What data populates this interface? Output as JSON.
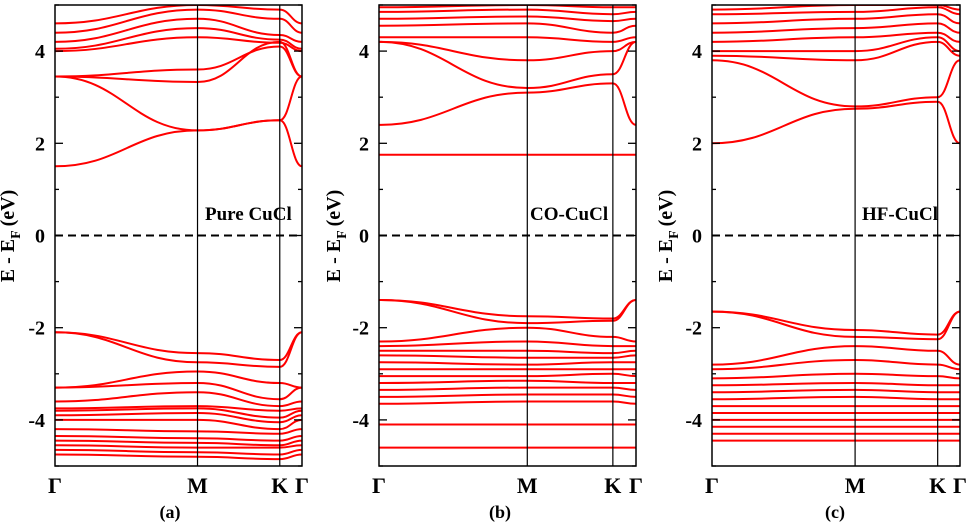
{
  "figure": {
    "panel_labels": [
      "(a)",
      "(b)",
      "(c)"
    ]
  },
  "chart_data": [
    {
      "type": "line",
      "annotation": "Pure CuCl",
      "panel_label": "(a)",
      "ylabel": "E - E",
      "ylabel_sub": "F",
      "ylabel_unit": "(eV)",
      "ylim": [
        -5,
        5
      ],
      "yticks": [
        -4,
        -2,
        0,
        2,
        4
      ],
      "k_points": [
        "Γ",
        "M",
        "K",
        "Γ"
      ],
      "k_positions": [
        0,
        0.577,
        0.91,
        1.0
      ],
      "fermi_level": 0,
      "line_color": "#ff0000",
      "bands": [
        [
          1.5,
          2.28,
          2.5,
          1.5
        ],
        [
          3.45,
          2.28,
          2.5,
          3.45
        ],
        [
          3.45,
          3.33,
          4.2,
          3.45
        ],
        [
          3.45,
          3.6,
          4.1,
          3.45
        ],
        [
          4.0,
          4.3,
          4.18,
          4.0
        ],
        [
          4.05,
          4.5,
          4.25,
          4.05
        ],
        [
          4.2,
          4.7,
          4.35,
          4.2
        ],
        [
          4.4,
          4.9,
          4.7,
          4.4
        ],
        [
          4.6,
          5.0,
          4.9,
          4.6
        ],
        [
          -2.1,
          -2.55,
          -2.7,
          -2.1
        ],
        [
          -2.1,
          -2.75,
          -2.85,
          -2.1
        ],
        [
          -3.3,
          -2.95,
          -3.2,
          -3.3
        ],
        [
          -3.3,
          -3.2,
          -3.55,
          -3.3
        ],
        [
          -3.6,
          -3.4,
          -3.7,
          -3.6
        ],
        [
          -3.75,
          -3.7,
          -3.8,
          -3.75
        ],
        [
          -3.8,
          -3.75,
          -3.95,
          -3.8
        ],
        [
          -3.9,
          -3.85,
          -4.05,
          -3.9
        ],
        [
          -4.0,
          -4.0,
          -4.2,
          -4.0
        ],
        [
          -4.2,
          -4.25,
          -4.3,
          -4.2
        ],
        [
          -4.35,
          -4.4,
          -4.45,
          -4.35
        ],
        [
          -4.45,
          -4.5,
          -4.55,
          -4.45
        ],
        [
          -4.55,
          -4.6,
          -4.6,
          -4.55
        ],
        [
          -4.65,
          -4.7,
          -4.75,
          -4.65
        ],
        [
          -4.75,
          -4.8,
          -4.85,
          -4.75
        ]
      ]
    },
    {
      "type": "line",
      "annotation": "CO-CuCl",
      "panel_label": "(b)",
      "ylabel": "E - E",
      "ylabel_sub": "F",
      "ylabel_unit": "(eV)",
      "ylim": [
        -5,
        5
      ],
      "yticks": [
        -4,
        -2,
        0,
        2,
        4
      ],
      "k_points": [
        "Γ",
        "M",
        "K",
        "Γ"
      ],
      "k_positions": [
        0,
        0.577,
        0.91,
        1.0
      ],
      "fermi_level": 0,
      "line_color": "#ff0000",
      "bands": [
        [
          1.75,
          1.75,
          1.75,
          1.75
        ],
        [
          2.4,
          3.1,
          3.3,
          2.4
        ],
        [
          4.2,
          3.2,
          3.5,
          4.2
        ],
        [
          4.2,
          3.8,
          4.0,
          4.2
        ],
        [
          4.3,
          4.3,
          4.2,
          4.3
        ],
        [
          4.55,
          4.6,
          4.4,
          4.55
        ],
        [
          4.7,
          4.75,
          4.65,
          4.7
        ],
        [
          4.85,
          4.9,
          4.8,
          4.85
        ],
        [
          4.95,
          5.0,
          4.95,
          4.95
        ],
        [
          -1.4,
          -1.75,
          -1.8,
          -1.4
        ],
        [
          -1.4,
          -1.9,
          -1.85,
          -1.4
        ],
        [
          -2.3,
          -2.0,
          -2.2,
          -2.3
        ],
        [
          -2.4,
          -2.3,
          -2.4,
          -2.4
        ],
        [
          -2.5,
          -2.5,
          -2.55,
          -2.5
        ],
        [
          -2.6,
          -2.65,
          -2.65,
          -2.6
        ],
        [
          -2.75,
          -2.8,
          -2.75,
          -2.75
        ],
        [
          -2.9,
          -2.9,
          -2.9,
          -2.9
        ],
        [
          -3.05,
          -3.05,
          -3.0,
          -3.05
        ],
        [
          -3.2,
          -3.15,
          -3.2,
          -3.2
        ],
        [
          -3.35,
          -3.3,
          -3.3,
          -3.35
        ],
        [
          -3.5,
          -3.45,
          -3.45,
          -3.5
        ],
        [
          -3.65,
          -3.6,
          -3.6,
          -3.65
        ],
        [
          -4.1,
          -4.1,
          -4.1,
          -4.1
        ],
        [
          -4.6,
          -4.6,
          -4.6,
          -4.6
        ]
      ]
    },
    {
      "type": "line",
      "annotation": "HF-CuCl",
      "panel_label": "(c)",
      "ylabel": "E - E",
      "ylabel_sub": "F",
      "ylabel_unit": "(eV)",
      "ylim": [
        -5,
        5
      ],
      "yticks": [
        -4,
        -2,
        0,
        2,
        4
      ],
      "k_points": [
        "Γ",
        "M",
        "K",
        "Γ"
      ],
      "k_positions": [
        0,
        0.577,
        0.91,
        1.0
      ],
      "fermi_level": 0,
      "line_color": "#ff0000",
      "bands": [
        [
          2.0,
          2.75,
          2.9,
          2.0
        ],
        [
          3.8,
          2.8,
          3.0,
          3.8
        ],
        [
          3.9,
          3.8,
          4.2,
          3.9
        ],
        [
          4.0,
          4.0,
          4.3,
          4.0
        ],
        [
          4.2,
          4.3,
          4.4,
          4.2
        ],
        [
          4.4,
          4.5,
          4.6,
          4.4
        ],
        [
          4.6,
          4.7,
          4.8,
          4.6
        ],
        [
          4.8,
          4.85,
          4.95,
          4.8
        ],
        [
          4.9,
          5.0,
          5.0,
          4.9
        ],
        [
          -1.65,
          -2.05,
          -2.15,
          -1.65
        ],
        [
          -1.65,
          -2.2,
          -2.25,
          -1.65
        ],
        [
          -2.8,
          -2.4,
          -2.5,
          -2.8
        ],
        [
          -2.9,
          -2.7,
          -2.8,
          -2.9
        ],
        [
          -3.1,
          -3.0,
          -3.05,
          -3.1
        ],
        [
          -3.25,
          -3.2,
          -3.25,
          -3.25
        ],
        [
          -3.4,
          -3.35,
          -3.4,
          -3.4
        ],
        [
          -3.55,
          -3.5,
          -3.55,
          -3.55
        ],
        [
          -3.7,
          -3.7,
          -3.7,
          -3.7
        ],
        [
          -3.85,
          -3.85,
          -3.85,
          -3.85
        ],
        [
          -4.0,
          -4.0,
          -4.0,
          -4.0
        ],
        [
          -4.15,
          -4.15,
          -4.15,
          -4.15
        ],
        [
          -4.3,
          -4.3,
          -4.3,
          -4.3
        ],
        [
          -4.45,
          -4.45,
          -4.45,
          -4.45
        ]
      ]
    }
  ]
}
